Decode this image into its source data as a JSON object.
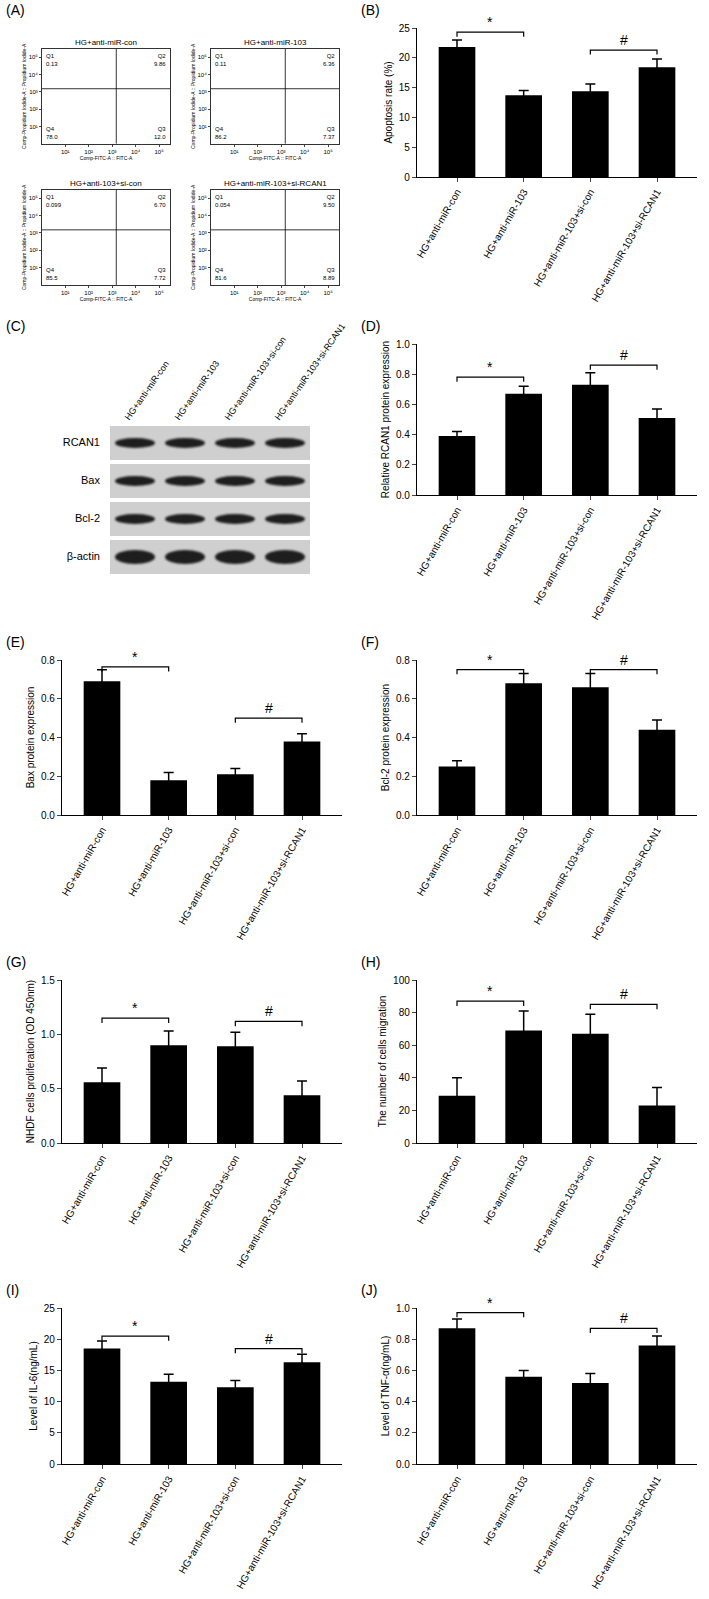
{
  "chart_data": [
    {
      "panel": "(A)",
      "type": "flow_quadrants",
      "x_label": "Comp-FITC-A :: FITC-A",
      "y_label": "Comp-Propidium Iodide-A :: Propidium Iodide-A",
      "log": true,
      "xlim": [
        1,
        300000
      ],
      "ylim": [
        1,
        300000
      ],
      "xticks": [
        {
          "value": 10,
          "label": "10¹"
        },
        {
          "value": 100,
          "label": "10²"
        },
        {
          "value": 1000,
          "label": "10³"
        },
        {
          "value": 10000,
          "label": "10⁴"
        },
        {
          "value": 100000,
          "label": "10⁵"
        }
      ],
      "yticks": [
        {
          "value": 10,
          "label": "10¹"
        },
        {
          "value": 100,
          "label": "10²"
        },
        {
          "value": 1000,
          "label": "10³"
        },
        {
          "value": 10000,
          "label": "10⁴"
        },
        {
          "value": 100000,
          "label": "10⁵"
        }
      ],
      "gate": {
        "x": 1500,
        "y": 1500
      },
      "color": "#000000",
      "plots": [
        {
          "title": "HG+anti-miR-con",
          "quadrants": [
            {
              "name": "Q1",
              "value": 0.13,
              "label": "0.13"
            },
            {
              "name": "Q2",
              "value": 9.86,
              "label": "9.86"
            },
            {
              "name": "Q3",
              "value": 12.0,
              "label": "12.0"
            },
            {
              "name": "Q4",
              "value": 78.0,
              "label": "78.0"
            }
          ]
        },
        {
          "title": "HG+anti-miR-103",
          "quadrants": [
            {
              "name": "Q1",
              "value": 0.11,
              "label": "0.11"
            },
            {
              "name": "Q2",
              "value": 6.36,
              "label": "6.36"
            },
            {
              "name": "Q3",
              "value": 7.37,
              "label": "7.37"
            },
            {
              "name": "Q4",
              "value": 86.2,
              "label": "86.2"
            }
          ]
        },
        {
          "title": "HG+anti-103+si-con",
          "quadrants": [
            {
              "name": "Q1",
              "value": 0.099,
              "label": "0.099"
            },
            {
              "name": "Q2",
              "value": 6.7,
              "label": "6.70"
            },
            {
              "name": "Q3",
              "value": 7.72,
              "label": "7.72"
            },
            {
              "name": "Q4",
              "value": 85.5,
              "label": "85.5"
            }
          ]
        },
        {
          "title": "HG+anti-miR-103+si-RCAN1",
          "quadrants": [
            {
              "name": "Q1",
              "value": 0.054,
              "label": "0.054"
            },
            {
              "name": "Q2",
              "value": 9.5,
              "label": "9.50"
            },
            {
              "name": "Q3",
              "value": 8.89,
              "label": "8.89"
            },
            {
              "name": "Q4",
              "value": 81.6,
              "label": "81.6"
            }
          ]
        }
      ]
    },
    {
      "panel": "(B)",
      "type": "bar",
      "y_label": "Apoptosis rate (%)",
      "color": "#000000",
      "categories": [
        "HG+anti-miR-con",
        "HG+anti-miR-103",
        "HG+anti-miR-103+si-con",
        "HG+anti-miR-103+si-RCAN1"
      ],
      "values": [
        21.8,
        13.7,
        14.4,
        18.4
      ],
      "errors": [
        1.2,
        0.8,
        1.2,
        1.4
      ],
      "ylim": [
        0,
        25
      ],
      "yticks": [
        0,
        5,
        10,
        15,
        20,
        25
      ],
      "brackets": [
        {
          "from": 0,
          "to": 1,
          "y": 24.3,
          "label": "*"
        },
        {
          "from": 2,
          "to": 3,
          "y": 21.3,
          "label": "#"
        }
      ]
    },
    {
      "panel": "(D)",
      "type": "bar",
      "y_label": "Relative RCAN1 protein expression",
      "color": "#000000",
      "categories": [
        "HG+anti-miR-con",
        "HG+anti-miR-103",
        "HG+anti-miR-103+si-con",
        "HG+anti-miR-103+si-RCAN1"
      ],
      "values": [
        0.39,
        0.67,
        0.73,
        0.51
      ],
      "errors": [
        0.03,
        0.05,
        0.08,
        0.06
      ],
      "ylim": [
        0,
        1.0
      ],
      "yticks": [
        {
          "value": 0,
          "label": "0.0"
        },
        {
          "value": 0.2,
          "label": "0.2"
        },
        {
          "value": 0.4,
          "label": "0.4"
        },
        {
          "value": 0.6,
          "label": "0.6"
        },
        {
          "value": 0.8,
          "label": "0.8"
        },
        {
          "value": 1.0,
          "label": "1.0"
        }
      ],
      "brackets": [
        {
          "from": 0,
          "to": 1,
          "y": 0.78,
          "label": "*"
        },
        {
          "from": 2,
          "to": 3,
          "y": 0.86,
          "label": "#"
        }
      ]
    },
    {
      "panel": "(E)",
      "type": "bar",
      "y_label": "Bax protein expression",
      "color": "#000000",
      "categories": [
        "HG+anti-miR-con",
        "HG+anti-miR-103",
        "HG+anti-miR-103+si-con",
        "HG+anti-miR-103+si-RCAN1"
      ],
      "values": [
        0.69,
        0.18,
        0.21,
        0.38
      ],
      "errors": [
        0.06,
        0.04,
        0.03,
        0.04
      ],
      "ylim": [
        0,
        0.8
      ],
      "yticks": [
        {
          "value": 0,
          "label": "0.0"
        },
        {
          "value": 0.2,
          "label": "0.2"
        },
        {
          "value": 0.4,
          "label": "0.4"
        },
        {
          "value": 0.6,
          "label": "0.6"
        },
        {
          "value": 0.8,
          "label": "0.8"
        }
      ],
      "brackets": [
        {
          "from": 0,
          "to": 1,
          "y": 0.765,
          "label": "*"
        },
        {
          "from": 2,
          "to": 3,
          "y": 0.5,
          "label": "#"
        }
      ]
    },
    {
      "panel": "(F)",
      "type": "bar",
      "y_label": "Bcl-2 protein expression",
      "color": "#000000",
      "categories": [
        "HG+anti-miR-con",
        "HG+anti-miR-103",
        "HG+anti-miR-103+si-con",
        "HG+anti-miR-103+si-RCAN1"
      ],
      "values": [
        0.25,
        0.68,
        0.66,
        0.44
      ],
      "errors": [
        0.03,
        0.05,
        0.07,
        0.05
      ],
      "ylim": [
        0,
        0.8
      ],
      "yticks": [
        {
          "value": 0,
          "label": "0.0"
        },
        {
          "value": 0.2,
          "label": "0.2"
        },
        {
          "value": 0.4,
          "label": "0.4"
        },
        {
          "value": 0.6,
          "label": "0.6"
        },
        {
          "value": 0.8,
          "label": "0.8"
        }
      ],
      "brackets": [
        {
          "from": 0,
          "to": 1,
          "y": 0.75,
          "label": "*"
        },
        {
          "from": 2,
          "to": 3,
          "y": 0.75,
          "label": "#"
        }
      ]
    },
    {
      "panel": "(G)",
      "type": "bar",
      "y_label": "NHDF cells proliferation (OD 450nm)",
      "color": "#000000",
      "categories": [
        "HG+anti-miR-con",
        "HG+anti-miR-103",
        "HG+anti-miR-103+si-con",
        "HG+anti-miR-103+si-RCAN1"
      ],
      "values": [
        0.56,
        0.9,
        0.89,
        0.44
      ],
      "errors": [
        0.13,
        0.13,
        0.13,
        0.13
      ],
      "ylim": [
        0,
        1.5
      ],
      "yticks": [
        {
          "value": 0,
          "label": "0.0"
        },
        {
          "value": 0.5,
          "label": "0.5"
        },
        {
          "value": 1.0,
          "label": "1.0"
        },
        {
          "value": 1.5,
          "label": "1.5"
        }
      ],
      "brackets": [
        {
          "from": 0,
          "to": 1,
          "y": 1.15,
          "label": "*"
        },
        {
          "from": 2,
          "to": 3,
          "y": 1.12,
          "label": "#"
        }
      ]
    },
    {
      "panel": "(H)",
      "type": "bar",
      "y_label": "The number of cells migration",
      "color": "#000000",
      "categories": [
        "HG+anti-miR-con",
        "HG+anti-miR-103",
        "HG+anti-miR-103+si-con",
        "HG+anti-miR-103+si-RCAN1"
      ],
      "values": [
        29,
        69,
        67,
        23
      ],
      "errors": [
        11,
        12,
        12,
        11
      ],
      "ylim": [
        0,
        100
      ],
      "yticks": [
        0,
        20,
        40,
        60,
        80,
        100
      ],
      "brackets": [
        {
          "from": 0,
          "to": 1,
          "y": 87,
          "label": "*"
        },
        {
          "from": 2,
          "to": 3,
          "y": 85,
          "label": "#"
        }
      ]
    },
    {
      "panel": "(I)",
      "type": "bar",
      "y_label": "Level of IL-6(ng/mL)",
      "color": "#000000",
      "categories": [
        "HG+anti-miR-con",
        "HG+anti-miR-103",
        "HG+anti-miR-103+si-con",
        "HG+anti-miR-103+si-RCAN1"
      ],
      "values": [
        18.5,
        13.2,
        12.3,
        16.3
      ],
      "errors": [
        1.2,
        1.2,
        1.1,
        1.3
      ],
      "ylim": [
        0,
        25
      ],
      "yticks": [
        0,
        5,
        10,
        15,
        20,
        25
      ],
      "brackets": [
        {
          "from": 0,
          "to": 1,
          "y": 20.5,
          "label": "*"
        },
        {
          "from": 2,
          "to": 3,
          "y": 18.5,
          "label": "#"
        }
      ]
    },
    {
      "panel": "(J)",
      "type": "bar",
      "y_label": "Level of TNF-α(ng/mL)",
      "color": "#000000",
      "categories": [
        "HG+anti-miR-con",
        "HG+anti-miR-103",
        "HG+anti-miR-103+si-con",
        "HG+anti-miR-103+si-RCAN1"
      ],
      "values": [
        0.87,
        0.56,
        0.52,
        0.76
      ],
      "errors": [
        0.06,
        0.04,
        0.06,
        0.06
      ],
      "ylim": [
        0,
        1.0
      ],
      "yticks": [
        {
          "value": 0,
          "label": "0.0"
        },
        {
          "value": 0.2,
          "label": "0.2"
        },
        {
          "value": 0.4,
          "label": "0.4"
        },
        {
          "value": 0.6,
          "label": "0.6"
        },
        {
          "value": 0.8,
          "label": "0.8"
        },
        {
          "value": 1.0,
          "label": "1.0"
        }
      ],
      "brackets": [
        {
          "from": 0,
          "to": 1,
          "y": 0.97,
          "label": "*"
        },
        {
          "from": 2,
          "to": 3,
          "y": 0.87,
          "label": "#"
        }
      ]
    }
  ],
  "diagram": {
    "panel": "(C)",
    "type": "western_blot",
    "lanes": [
      "HG+anti-miR-con",
      "HG+anti-miR-103",
      "HG+anti-miR-103+si-con",
      "HG+anti-miR-103+si-RCAN1"
    ],
    "rows": [
      "RCAN1",
      "Bax",
      "Bcl-2",
      "β-actin"
    ]
  }
}
